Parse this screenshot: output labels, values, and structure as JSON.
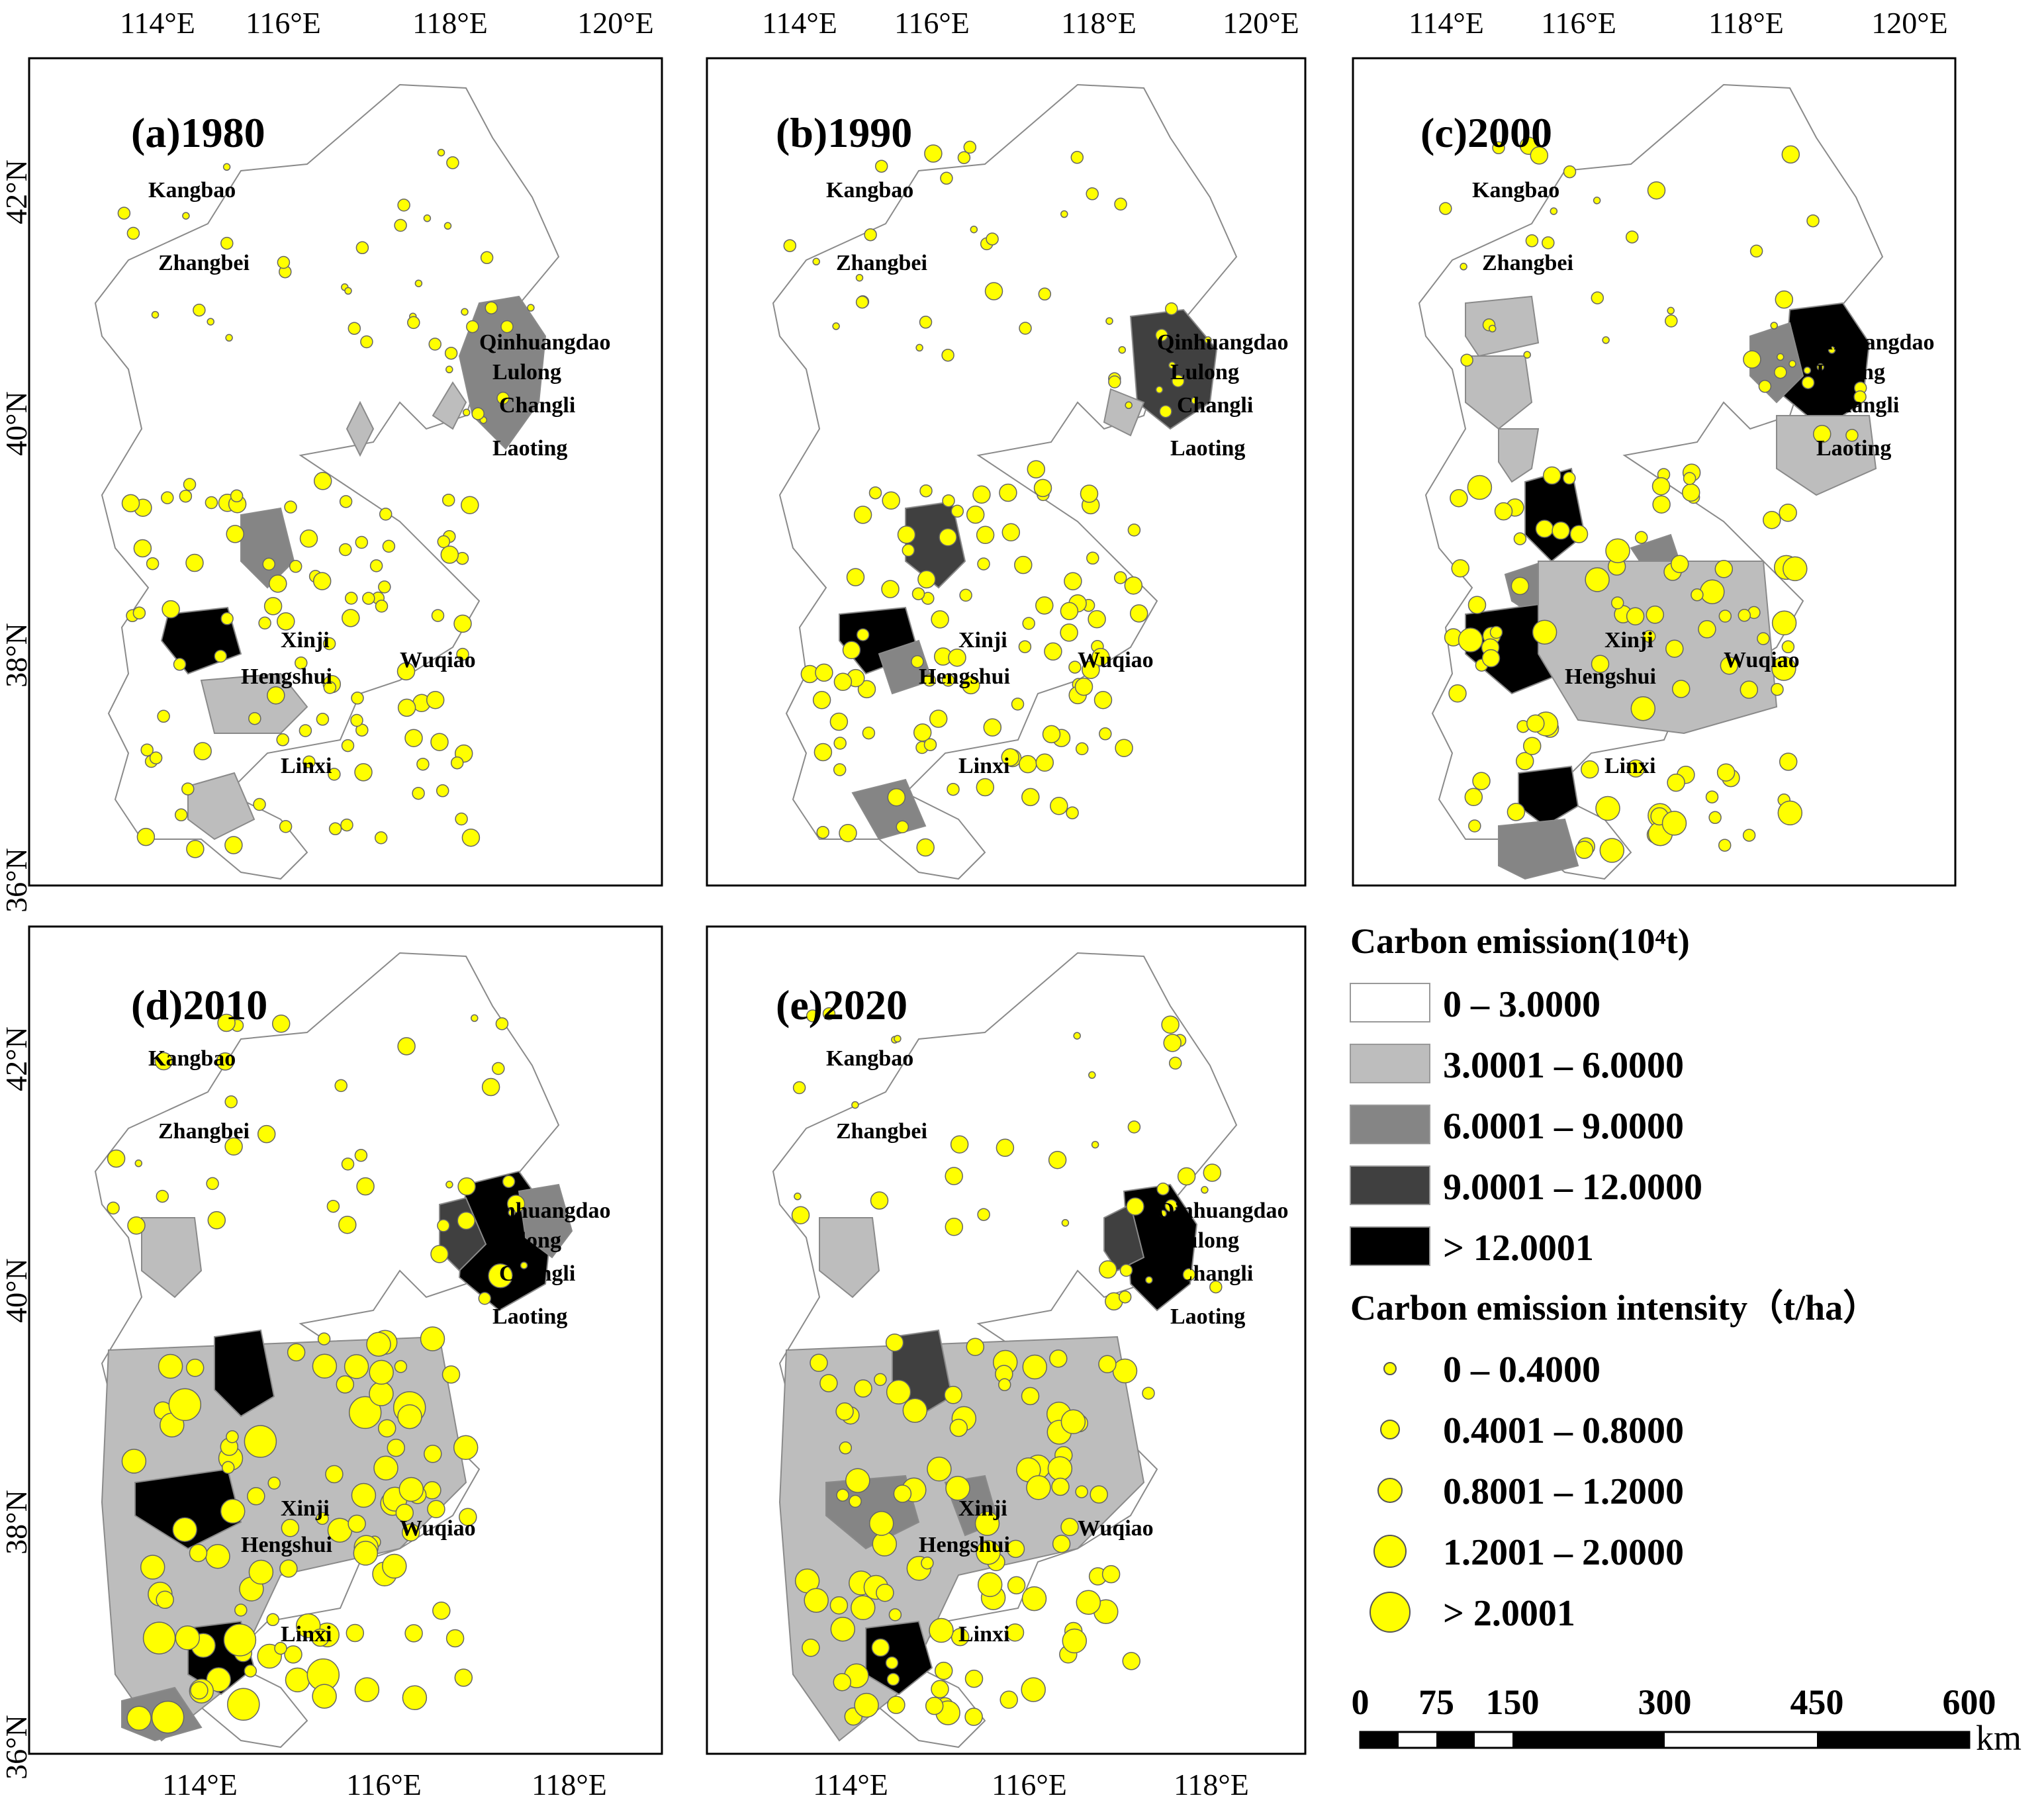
{
  "panels": [
    {
      "label": "(a)1980",
      "top_ticks": [
        "114°E",
        "116°E",
        "118°E",
        "120°E"
      ],
      "bottom_ticks": [],
      "side_ticks": [
        "42°N",
        "40°N",
        "38°N",
        "36°N"
      ]
    },
    {
      "label": "(b)1990",
      "top_ticks": [
        "114°E",
        "116°E",
        "118°E",
        "120°E"
      ],
      "bottom_ticks": [],
      "side_ticks": []
    },
    {
      "label": "(c)2000",
      "top_ticks": [
        "114°E",
        "116°E",
        "118°E",
        "120°E"
      ],
      "bottom_ticks": [],
      "side_ticks": []
    },
    {
      "label": "(d)2010",
      "top_ticks": [],
      "bottom_ticks": [
        "114°E",
        "116°E",
        "118°E"
      ],
      "side_ticks": [
        "42°N",
        "40°N",
        "38°N",
        "36°N"
      ]
    },
    {
      "label": "(e)2020",
      "top_ticks": [],
      "bottom_ticks": [
        "114°E",
        "116°E",
        "118°E"
      ],
      "side_ticks": []
    }
  ],
  "place_names": [
    "Kangbao",
    "Zhangbei",
    "Qinhuangdao",
    "Lulong",
    "Changli",
    "Laoting",
    "Xinji",
    "Wuqiao",
    "Hengshui",
    "Linxi"
  ],
  "legend": {
    "emission_title": "Carbon emission(10⁴t)",
    "emission_classes": [
      {
        "label": "0 – 3.0000",
        "color": "#ffffff"
      },
      {
        "label": "3.0001 – 6.0000",
        "color": "#bdbdbd"
      },
      {
        "label": "6.0001 – 9.0000",
        "color": "#858585"
      },
      {
        "label": "9.0001 – 12.0000",
        "color": "#404040"
      },
      {
        "label": "> 12.0001",
        "color": "#000000"
      }
    ],
    "intensity_title": "Carbon emission intensity（t/ha）",
    "intensity_classes": [
      {
        "label": "0 – 0.4000"
      },
      {
        "label": "0.4001 – 0.8000"
      },
      {
        "label": "0.8001 – 1.2000"
      },
      {
        "label": "1.2001 – 2.0000"
      },
      {
        "label": "> 2.0001"
      }
    ],
    "point_color": "#ffff00"
  },
  "scale_bar": {
    "labels": [
      "0",
      "75",
      "150",
      "300",
      "450",
      "600"
    ],
    "unit": "km"
  }
}
